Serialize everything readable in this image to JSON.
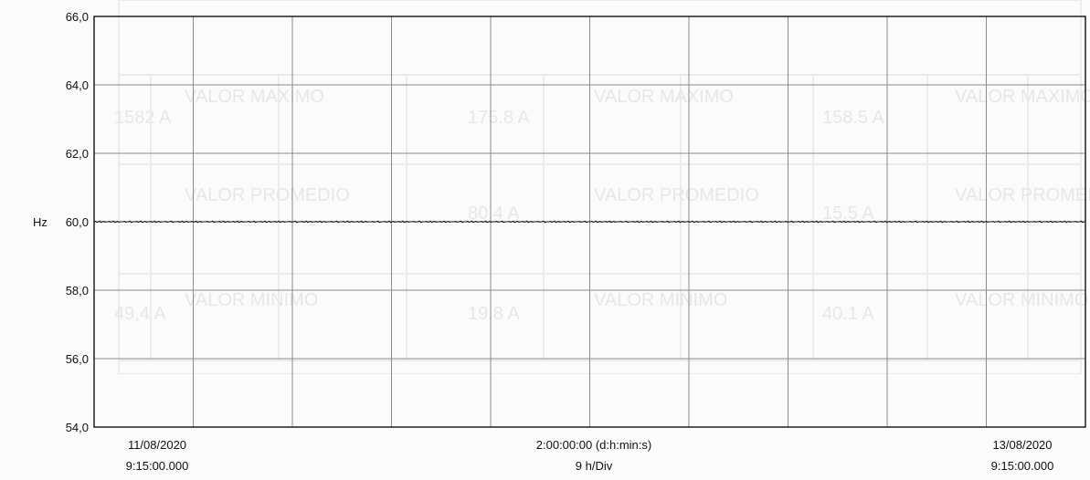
{
  "chart_data": {
    "type": "line",
    "ylabel": "Hz",
    "xlim_start": "11/08/2020 9:15:00.000",
    "xlim_end": "13/08/2020 9:15:00.000",
    "ylim": [
      54.0,
      66.0
    ],
    "yticks": [
      "54,0",
      "56,0",
      "58,0",
      "60,0",
      "62,0",
      "64,0",
      "66,0"
    ],
    "ytick_values": [
      54.0,
      56.0,
      58.0,
      60.0,
      62.0,
      64.0,
      66.0
    ],
    "x_labels": {
      "left_date": "11/08/2020",
      "left_time": "9:15:00.000",
      "center_duration": "2:00:00:00 (d:h:min:s)",
      "center_div": "9 h/Div",
      "right_date": "13/08/2020",
      "right_time": "9:15:00.000"
    },
    "series": [
      {
        "values": [
          60.0,
          60.01,
          59.99,
          60.0,
          60.02,
          59.98,
          60.0,
          60.01,
          59.99,
          60.0,
          60.0,
          60.01,
          59.99,
          60.0,
          60.02,
          59.98,
          60.0,
          60.01,
          59.99,
          60.0,
          60.0,
          60.0,
          60.01,
          59.99,
          60.0,
          60.0,
          60.02,
          59.98,
          60.0,
          60.0
        ]
      }
    ],
    "grid": true,
    "colors": {
      "line": "#111111",
      "grid": "#8b8b8b",
      "frame": "#111111",
      "ghost": "#9a9a9a"
    }
  },
  "background": {
    "ghost_values": [
      "VALOR MAXIMO",
      "1582 A",
      "VALOR PROMEDIO",
      "VALOR MINIMO",
      "49,4 A",
      "VALOR MAXIMO",
      "VALOR PROMEDIO",
      "VALOR MINIMO",
      "175.8 A",
      "80.4 A",
      "19.8 A",
      "VALOR MAXIMO",
      "VALOR PROMEDIO",
      "VALOR MINIMO",
      "158.5 A",
      "15.5 A",
      "40.1 A"
    ]
  }
}
